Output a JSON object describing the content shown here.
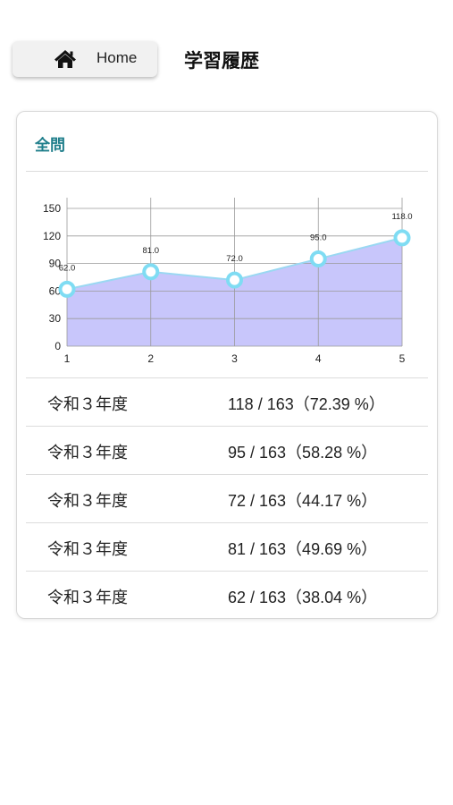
{
  "header": {
    "home_label": "Home",
    "home_icon": "home-icon",
    "title": "学習履歴"
  },
  "card": {
    "title": "全問"
  },
  "colors": {
    "accent_title": "#1d7d8a",
    "area_fill": "#c8c6fb",
    "line": "#9ad8f2",
    "marker_stroke": "#7fdcf3"
  },
  "chart_data": {
    "type": "area",
    "x": [
      1,
      2,
      3,
      4,
      5
    ],
    "values": [
      62,
      81,
      72,
      95,
      118
    ],
    "data_labels": [
      "62.0",
      "81.0",
      "72.0",
      "95.0",
      "118.0"
    ],
    "xlim": [
      1,
      5
    ],
    "ylim": [
      0,
      150
    ],
    "yticks": [
      0,
      30,
      60,
      90,
      120,
      150
    ],
    "xticks": [
      1,
      2,
      3,
      4,
      5
    ],
    "grid": true
  },
  "history": [
    {
      "year": "令和３年度",
      "score": "118 / 163（72.39 %）"
    },
    {
      "year": "令和３年度",
      "score": "95 / 163（58.28 %）"
    },
    {
      "year": "令和３年度",
      "score": "72 / 163（44.17 %）"
    },
    {
      "year": "令和３年度",
      "score": "81 / 163（49.69 %）"
    },
    {
      "year": "令和３年度",
      "score": "62 / 163（38.04 %）"
    }
  ]
}
